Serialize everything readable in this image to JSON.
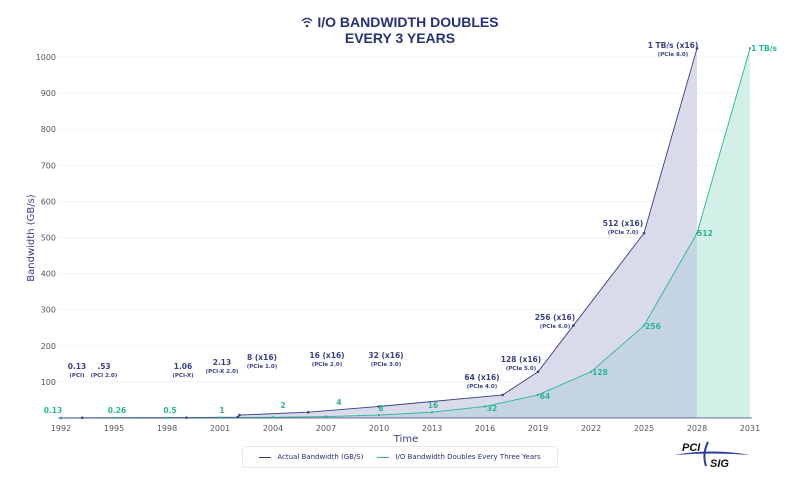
{
  "header": {
    "title_line1": "I/O BANDWIDTH DOUBLES",
    "title_line2": "EVERY 3 YEARS",
    "icon": "wifi-icon"
  },
  "logo": {
    "text_top": "PCI",
    "text_bottom": "SIG"
  },
  "colors": {
    "actual": "#3b3f86",
    "actual_fill": "#d9dbeb",
    "doubling": "#2bb597",
    "doubling_fill": "#d2f0e7",
    "overlap_fill": "#c5d4e3",
    "title": "#27307a"
  },
  "chart_data": {
    "type": "area",
    "title": "I/O BANDWIDTH DOUBLES EVERY 3 YEARS",
    "xlabel": "Time",
    "ylabel": "Bandwidth (GB/s)",
    "xlim": [
      1992,
      2031
    ],
    "ylim": [
      0,
      1024
    ],
    "x_ticks": [
      1992,
      1995,
      1998,
      2001,
      2004,
      2007,
      2010,
      2013,
      2016,
      2019,
      2022,
      2025,
      2028,
      2031
    ],
    "y_ticks": [
      100,
      200,
      300,
      400,
      500,
      600,
      700,
      800,
      900,
      1000
    ],
    "grid": true,
    "legend_position": "bottom",
    "series": [
      {
        "name": "Actual Bandwidth (GB/S)",
        "points": [
          {
            "x": 1992,
            "y": 0.13,
            "label": "0.13",
            "sub": "(PCI)"
          },
          {
            "x": 1993.2,
            "y": 0.53,
            "label": ".53",
            "sub": "(PCI 2.0)"
          },
          {
            "x": 1999.1,
            "y": 1.06,
            "label": "1.06",
            "sub": "(PCI-X)"
          },
          {
            "x": 2002,
            "y": 2.13,
            "label": "2.13",
            "sub": "(PCI-X 2.0)"
          },
          {
            "x": 2002.1,
            "y": 8,
            "label": "8 (x16)",
            "sub": "(PCIe 1.0)"
          },
          {
            "x": 2006,
            "y": 16,
            "label": "16 (x16)",
            "sub": "(PCIe 2.0)"
          },
          {
            "x": 2010,
            "y": 32,
            "label": "32 (x16)",
            "sub": "(PCIe 3.0)"
          },
          {
            "x": 2017,
            "y": 64,
            "label": "64 (x16)",
            "sub": "(PCIe 4.0)"
          },
          {
            "x": 2019,
            "y": 128,
            "label": "128 (x16)",
            "sub": "(PCIe 5.0)"
          },
          {
            "x": 2021,
            "y": 256,
            "label": "256 (x16)",
            "sub": "(PCIe 6.0)"
          },
          {
            "x": 2025,
            "y": 512,
            "label": "512 (x16)",
            "sub": "(PCIe 7.0)"
          },
          {
            "x": 2028,
            "y": 1024,
            "label": "1 TB/s (x16)",
            "sub": "(PCIe 8.0)"
          }
        ]
      },
      {
        "name": "I/O Bandwidth Doubles Every Three Years",
        "points": [
          {
            "x": 1992,
            "y": 0.13,
            "label": "0.13"
          },
          {
            "x": 1995,
            "y": 0.26,
            "label": "0.26"
          },
          {
            "x": 1998,
            "y": 0.5,
            "label": "0.5"
          },
          {
            "x": 2001,
            "y": 1,
            "label": "1"
          },
          {
            "x": 2004,
            "y": 2,
            "label": "2"
          },
          {
            "x": 2007,
            "y": 4,
            "label": "4"
          },
          {
            "x": 2010,
            "y": 8,
            "label": "8"
          },
          {
            "x": 2013,
            "y": 16,
            "label": "16"
          },
          {
            "x": 2016,
            "y": 32,
            "label": "32"
          },
          {
            "x": 2019,
            "y": 64,
            "label": "64"
          },
          {
            "x": 2022,
            "y": 128,
            "label": "128"
          },
          {
            "x": 2025,
            "y": 256,
            "label": "256"
          },
          {
            "x": 2028,
            "y": 512,
            "label": "512"
          },
          {
            "x": 2031,
            "y": 1024,
            "label": "1 TB/s"
          }
        ]
      }
    ]
  }
}
